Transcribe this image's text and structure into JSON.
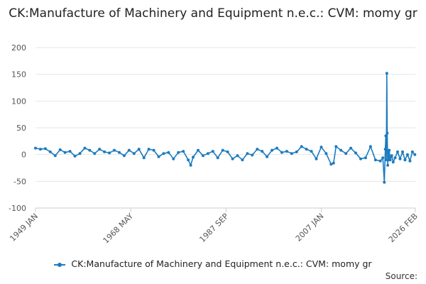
{
  "chart_data": {
    "type": "line",
    "title": "CK:Manufacture of Machinery and Equipment n.e.c.: CVM: momy gr",
    "ylim": [
      -100,
      200
    ],
    "yticks": [
      -100,
      -50,
      0,
      50,
      100,
      150,
      200
    ],
    "xlim": [
      1949.0,
      2026.1
    ],
    "xticks": [
      {
        "label": "1949 JAN",
        "value": 1949.0
      },
      {
        "label": "1968 MAY",
        "value": 1968.33
      },
      {
        "label": "1987 SEP",
        "value": 1987.67
      },
      {
        "label": "2007 JAN",
        "value": 2007.0
      },
      {
        "label": "2026 FEB",
        "value": 2026.08
      }
    ],
    "series": [
      {
        "name": "CK:Manufacture of Machinery and Equipment n.e.c.: CVM: momy gr",
        "color": "#1c7bbf",
        "x": [
          1949.0,
          1950.0,
          1951.0,
          1952.0,
          1953.0,
          1954.0,
          1955.0,
          1956.0,
          1957.0,
          1958.0,
          1959.0,
          1960.0,
          1961.0,
          1962.0,
          1963.0,
          1964.0,
          1965.0,
          1966.0,
          1967.0,
          1968.0,
          1969.0,
          1970.0,
          1971.0,
          1972.0,
          1973.0,
          1974.0,
          1975.0,
          1976.0,
          1977.0,
          1978.0,
          1979.0,
          1980.0,
          1980.5,
          1981.0,
          1982.0,
          1983.0,
          1984.0,
          1985.0,
          1986.0,
          1987.0,
          1988.0,
          1989.0,
          1990.0,
          1991.0,
          1992.0,
          1993.0,
          1994.0,
          1995.0,
          1996.0,
          1997.0,
          1998.0,
          1999.0,
          2000.0,
          2001.0,
          2002.0,
          2003.0,
          2004.0,
          2005.0,
          2006.0,
          2007.0,
          2008.0,
          2009.0,
          2009.5,
          2010.0,
          2011.0,
          2012.0,
          2013.0,
          2014.0,
          2015.0,
          2016.0,
          2017.0,
          2018.0,
          2019.0,
          2019.5,
          2019.8,
          2020.0,
          2020.1,
          2020.2,
          2020.3,
          2020.4,
          2020.5,
          2020.6,
          2020.7,
          2020.8,
          2021.0,
          2021.3,
          2021.6,
          2022.0,
          2022.5,
          2023.0,
          2023.5,
          2024.0,
          2024.5,
          2025.0,
          2025.5,
          2026.0
        ],
        "values": [
          12,
          10,
          11,
          5,
          -2,
          9,
          4,
          6,
          -3,
          2,
          12,
          8,
          2,
          10,
          5,
          3,
          8,
          4,
          -2,
          8,
          2,
          10,
          -6,
          10,
          8,
          -4,
          2,
          4,
          -8,
          4,
          6,
          -10,
          -20,
          -5,
          8,
          -2,
          2,
          6,
          -6,
          8,
          5,
          -8,
          -2,
          -10,
          2,
          -1,
          10,
          6,
          -4,
          8,
          12,
          4,
          6,
          2,
          5,
          15,
          10,
          6,
          -8,
          14,
          2,
          -18,
          -16,
          15,
          8,
          2,
          12,
          3,
          -8,
          -6,
          15,
          -10,
          -12,
          -6,
          -52,
          10,
          35,
          -10,
          152,
          40,
          -20,
          5,
          -10,
          8,
          -10,
          -2,
          -14,
          -6,
          5,
          -8,
          5,
          -10,
          0,
          -12,
          5,
          0
        ]
      }
    ],
    "legend": "bottom-center",
    "source_label": "Source:"
  }
}
